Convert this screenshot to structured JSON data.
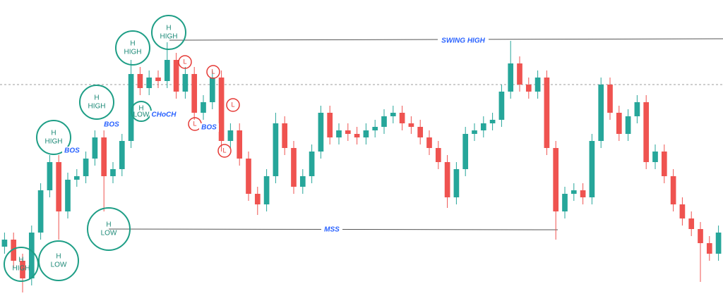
{
  "chart_data": {
    "type": "candlestick",
    "ylim": [
      0,
      420
    ],
    "up_color": "#26a69a",
    "down_color": "#ef5350",
    "open": [
      70,
      80,
      50,
      25,
      90,
      150,
      190,
      120,
      165,
      170,
      195,
      225,
      170,
      180,
      220,
      315,
      295,
      310,
      305,
      335,
      290,
      315,
      260,
      275,
      310,
      220,
      235,
      195,
      145,
      130,
      170,
      245,
      210,
      155,
      170,
      205,
      260,
      225,
      235,
      230,
      225,
      235,
      240,
      255,
      260,
      245,
      240,
      225,
      210,
      190,
      140,
      180,
      230,
      235,
      245,
      250,
      290,
      330,
      300,
      290,
      310,
      210,
      120,
      145,
      150,
      140,
      220,
      300,
      260,
      230,
      255,
      275,
      190,
      205,
      170,
      130,
      110,
      95,
      75,
      60
    ],
    "high": [
      90,
      90,
      60,
      100,
      160,
      200,
      200,
      175,
      180,
      205,
      235,
      235,
      190,
      230,
      335,
      325,
      320,
      320,
      360,
      345,
      325,
      325,
      285,
      320,
      320,
      245,
      245,
      205,
      155,
      180,
      260,
      255,
      220,
      180,
      215,
      270,
      270,
      245,
      245,
      240,
      245,
      250,
      265,
      270,
      270,
      255,
      250,
      235,
      220,
      200,
      190,
      240,
      245,
      255,
      260,
      300,
      362,
      340,
      310,
      320,
      320,
      220,
      155,
      160,
      160,
      230,
      310,
      310,
      270,
      265,
      285,
      285,
      215,
      215,
      180,
      140,
      120,
      105,
      85,
      100
    ],
    "low": [
      60,
      40,
      5,
      15,
      80,
      140,
      80,
      110,
      155,
      160,
      185,
      120,
      160,
      170,
      210,
      285,
      285,
      295,
      295,
      280,
      280,
      250,
      250,
      265,
      205,
      210,
      185,
      135,
      115,
      120,
      160,
      200,
      145,
      145,
      160,
      195,
      215,
      215,
      220,
      215,
      215,
      225,
      230,
      245,
      235,
      230,
      215,
      200,
      180,
      125,
      130,
      170,
      220,
      225,
      235,
      240,
      280,
      290,
      280,
      280,
      200,
      80,
      110,
      135,
      130,
      130,
      210,
      250,
      220,
      220,
      245,
      180,
      180,
      160,
      120,
      100,
      85,
      20,
      50,
      50
    ],
    "close": [
      80,
      50,
      25,
      90,
      150,
      190,
      120,
      165,
      170,
      195,
      225,
      170,
      180,
      220,
      315,
      295,
      310,
      305,
      335,
      290,
      315,
      260,
      275,
      310,
      220,
      235,
      195,
      145,
      130,
      170,
      245,
      210,
      155,
      170,
      205,
      260,
      225,
      235,
      230,
      225,
      235,
      240,
      255,
      260,
      245,
      240,
      225,
      210,
      190,
      140,
      180,
      230,
      235,
      245,
      250,
      290,
      330,
      300,
      290,
      310,
      210,
      120,
      145,
      150,
      140,
      220,
      300,
      260,
      230,
      255,
      275,
      190,
      205,
      170,
      130,
      110,
      95,
      75,
      60,
      90
    ]
  },
  "annotations": {
    "circles": [
      {
        "top": "H",
        "bottom": "HIGH"
      },
      {
        "top": "H",
        "bottom": "LOW"
      },
      {
        "top": "H",
        "bottom": "HIGH"
      },
      {
        "top": "H",
        "bottom": "HIGH"
      },
      {
        "top": "H",
        "bottom": "HIGH"
      },
      {
        "top": "H",
        "bottom": "HIGH"
      },
      {
        "top": "H",
        "bottom": "LOW"
      },
      {
        "top": "H",
        "bottom": "LOW"
      }
    ],
    "small_circles": [
      "L",
      "L",
      "L",
      "L",
      "L"
    ],
    "labels": [
      "BOS",
      "BOS",
      "CHoCH",
      "BOS",
      "SWING HIGH",
      "MSS"
    ]
  }
}
